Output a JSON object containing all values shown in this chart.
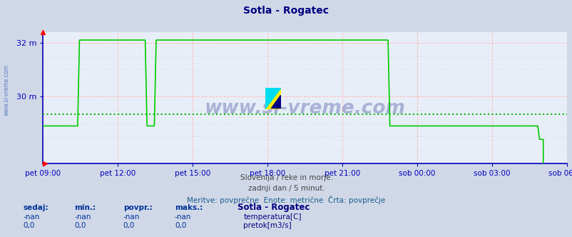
{
  "title": "Sotla - Rogatec",
  "title_color": "#000080",
  "bg_color": "#d0d8e8",
  "plot_bg_color": "#e8eef8",
  "axis_color": "#0000bb",
  "grid_color_major": "#ffbbbb",
  "grid_color_minor": "#ccccdd",
  "xtick_labels": [
    "pet 09:00",
    "pet 12:00",
    "pet 15:00",
    "pet 18:00",
    "pet 21:00",
    "sob 00:00",
    "sob 03:00",
    "sob 06:00"
  ],
  "avg_line_value": 29.35,
  "avg_line_color": "#00bb00",
  "line_color": "#00cc00",
  "ymin": 27.5,
  "ymax": 32.4,
  "ytick_vals": [
    30.0,
    32.0
  ],
  "ytick_labels": [
    "30 m",
    "32 m"
  ],
  "watermark": "www.si-vreme.com",
  "subtitle1": "Slovenija / reke in morje.",
  "subtitle2": "zadnji dan / 5 minut.",
  "subtitle3": "Meritve: povprečne  Enote: metrične  Črta: povprečje",
  "legend_title": "Sotla - Rogatec",
  "legend_temp_label": "temperatura[C]",
  "legend_flow_label": "pretok[m3/s]",
  "col_headers": [
    "sedaj:",
    "min.:",
    "povpr.:",
    "maks.:"
  ],
  "row1_vals": [
    "-nan",
    "-nan",
    "-nan",
    "-nan"
  ],
  "row2_vals": [
    "0,0",
    "0,0",
    "0,0",
    "0,0"
  ],
  "temp_color": "#cc0000",
  "flow_color": "#00aa00",
  "num_points": 288
}
